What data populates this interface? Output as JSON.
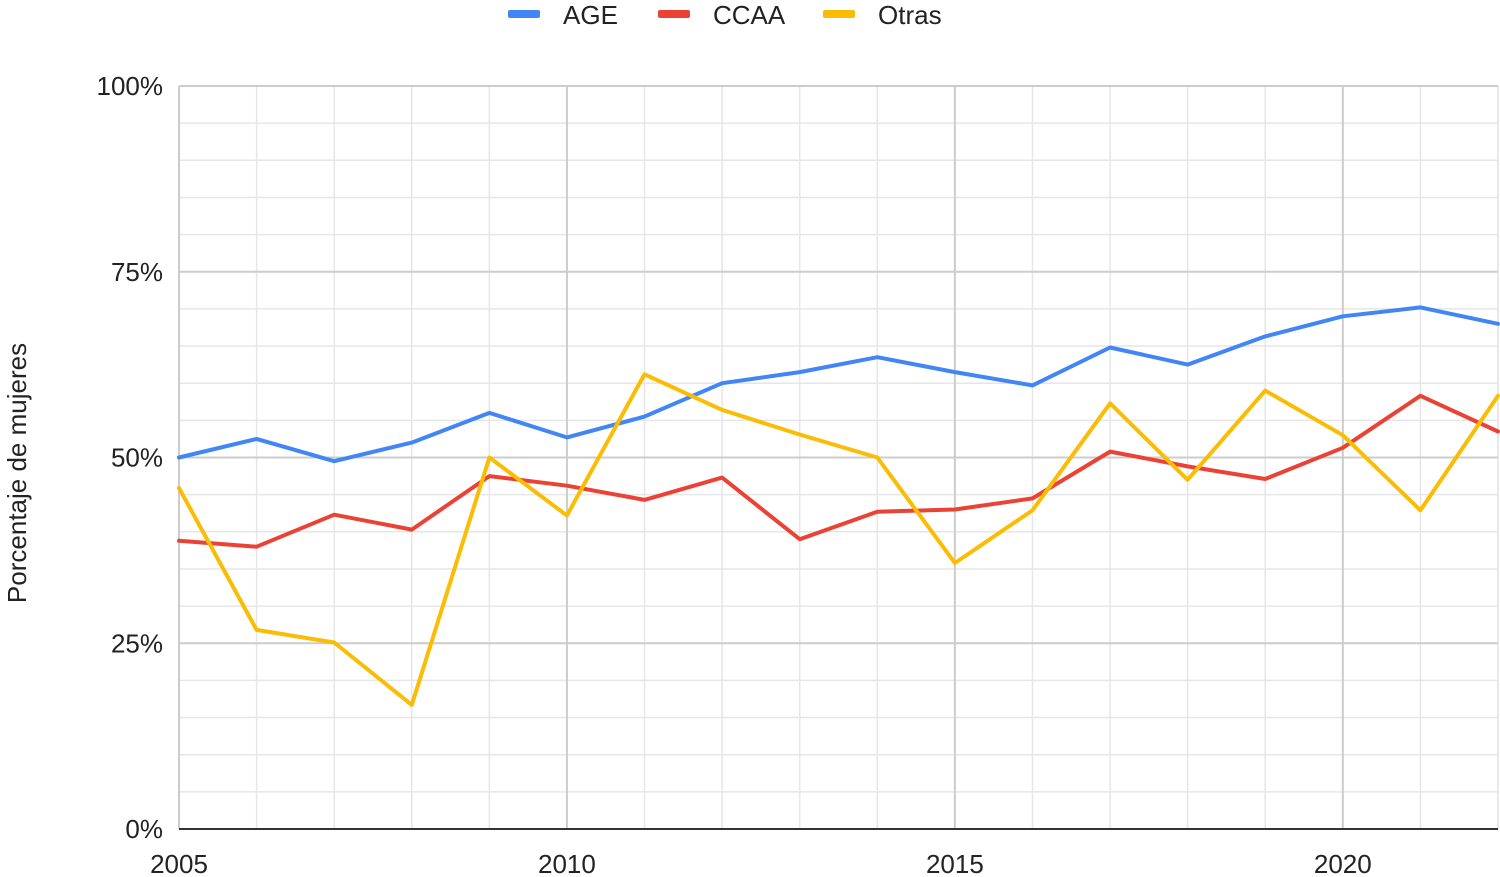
{
  "chart_data": {
    "type": "line",
    "title": "",
    "xlabel": "",
    "ylabel": "Porcentaje de mujeres",
    "x": [
      2005,
      2006,
      2007,
      2008,
      2009,
      2010,
      2011,
      2012,
      2013,
      2014,
      2015,
      2016,
      2017,
      2018,
      2019,
      2020,
      2021,
      2022
    ],
    "xlim": [
      2005,
      2022
    ],
    "xticks": [
      2005,
      2010,
      2015,
      2020
    ],
    "ylim": [
      0,
      100
    ],
    "yticks": [
      0,
      25,
      50,
      75,
      100
    ],
    "ytick_labels": [
      "0%",
      "25%",
      "50%",
      "75%",
      "100%"
    ],
    "grid": true,
    "legend_position": "top",
    "series": [
      {
        "name": "AGE",
        "color": "#4285F4",
        "values": [
          50,
          52.5,
          49.5,
          52,
          56,
          52.7,
          55.5,
          60,
          61.5,
          63.5,
          61.5,
          59.7,
          64.8,
          62.5,
          66.3,
          69,
          70.2,
          68
        ]
      },
      {
        "name": "CCAA",
        "color": "#EA4335",
        "values": [
          38.8,
          38,
          42.3,
          40.3,
          47.5,
          46.2,
          44.3,
          47.3,
          39,
          42.7,
          43,
          44.5,
          50.8,
          48.8,
          47.1,
          51.3,
          58.3,
          53.5
        ]
      },
      {
        "name": "Otras",
        "color": "#FBBC04",
        "values": [
          45.9,
          26.8,
          25.1,
          16.7,
          50,
          42.2,
          61.2,
          56.4,
          53.1,
          50,
          35.8,
          42.9,
          57.3,
          47,
          59,
          53,
          42.9,
          58.3
        ]
      }
    ]
  }
}
